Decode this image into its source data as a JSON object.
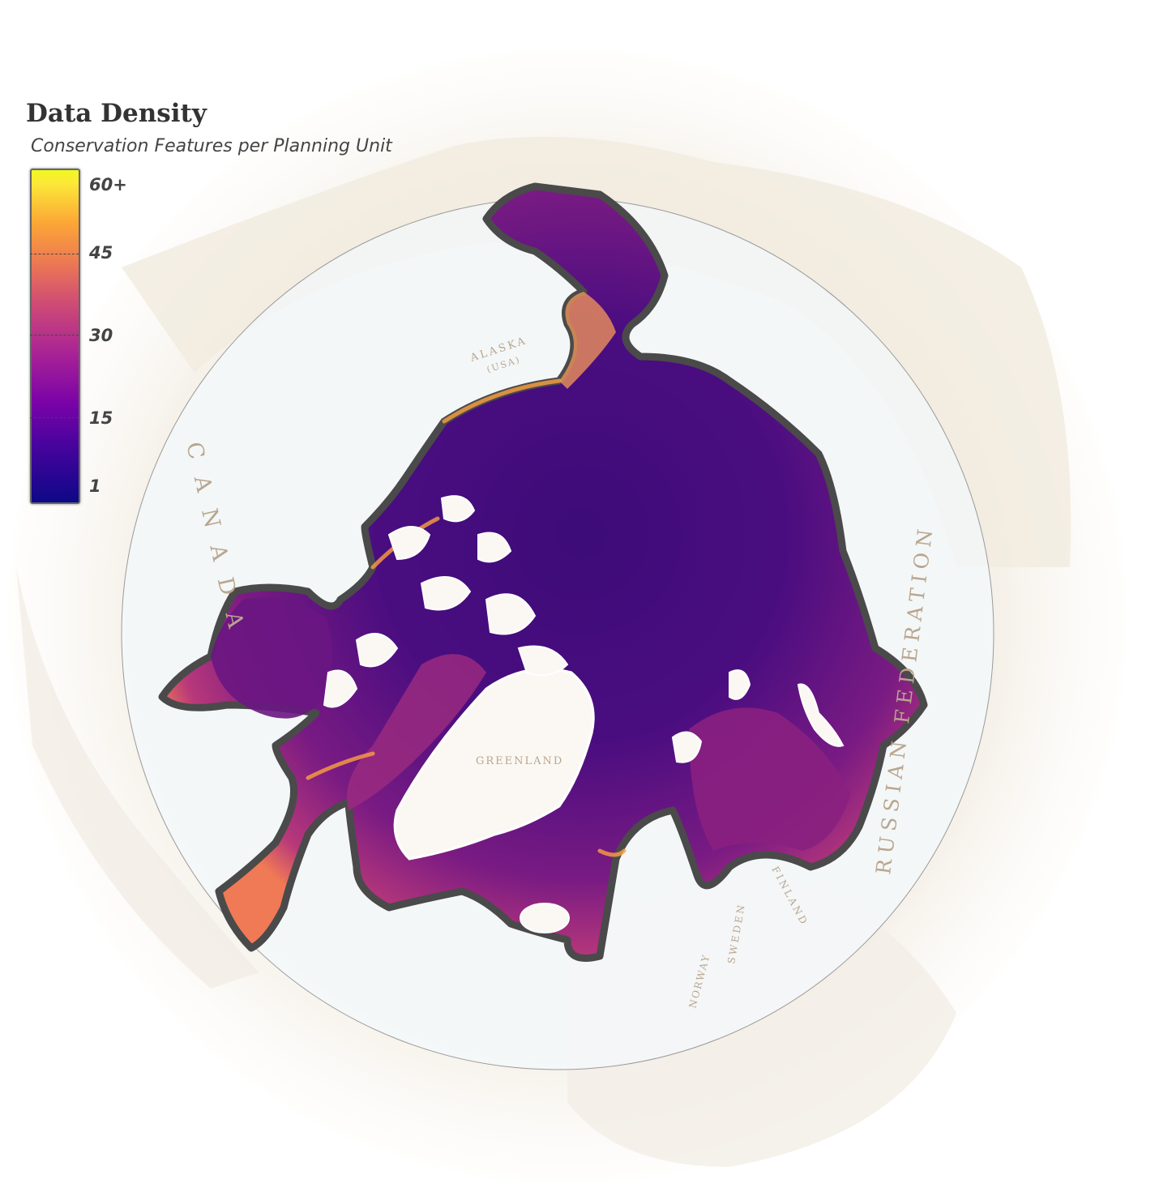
{
  "legend": {
    "title": "Data Density",
    "subtitle": "Conservation Features per Planning Unit",
    "ramp_colors": [
      "#0d0887",
      "#4b039f",
      "#7a03a8",
      "#a92395",
      "#cf4c74",
      "#ec7853",
      "#fca636",
      "#f0f921"
    ],
    "ticks": [
      {
        "value": 60,
        "label": "60+"
      },
      {
        "value": 45,
        "label": "45"
      },
      {
        "value": 30,
        "label": "30"
      },
      {
        "value": 15,
        "label": "15"
      },
      {
        "value": 1,
        "label": "1"
      }
    ]
  },
  "places": {
    "canada": "CANADA",
    "russia": "RUSSIAN FEDERATION",
    "alaska": "ALASKA",
    "alaska_sub": "(USA)",
    "greenland": "GREENLAND",
    "norway": "NORWAY",
    "sweden": "SWEDEN",
    "finland": "FINLAND"
  },
  "colors": {
    "density_low": "#3b0f70",
    "density_mid": "#8c2981",
    "density_high": "#fe9f6d",
    "boundary": "#4a4a4a",
    "coastline": "#ffffff",
    "land": "#f5f1ea",
    "ocean": "#eef6fb"
  }
}
